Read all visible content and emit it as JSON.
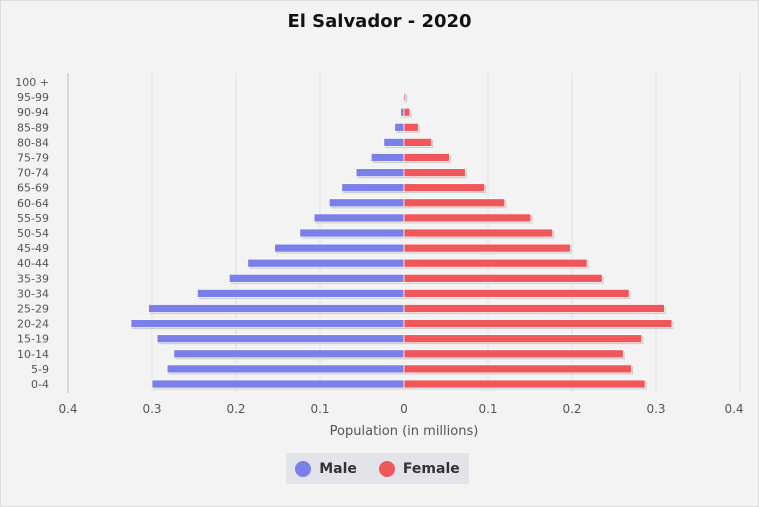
{
  "chart_data": {
    "type": "bar",
    "orientation": "horizontal-pyramid",
    "title": "El Salvador - 2020",
    "xlabel": "Population (in millions)",
    "ylabel": "",
    "xlim": [
      -0.4,
      0.4
    ],
    "x_ticks": [
      "0.4",
      "0.3",
      "0.2",
      "0.1",
      "0",
      "0.1",
      "0.2",
      "0.3",
      "0.4"
    ],
    "grid": true,
    "legend_position": "bottom-center",
    "categories": [
      "100 +",
      "95-99",
      "90-94",
      "85-89",
      "80-84",
      "75-79",
      "70-74",
      "65-69",
      "60-64",
      "55-59",
      "50-54",
      "45-49",
      "40-44",
      "35-39",
      "30-34",
      "25-29",
      "20-24",
      "15-19",
      "10-14",
      "5-9",
      "0-4"
    ],
    "series": [
      {
        "name": "Male",
        "color": "#7b7fe8",
        "values": [
          0,
          0.001,
          0.004,
          0.011,
          0.024,
          0.039,
          0.057,
          0.074,
          0.089,
          0.107,
          0.124,
          0.154,
          0.186,
          0.208,
          0.246,
          0.304,
          0.325,
          0.294,
          0.274,
          0.282,
          0.3
        ]
      },
      {
        "name": "Female",
        "color": "#f0575a",
        "values": [
          0,
          0.002,
          0.007,
          0.017,
          0.033,
          0.054,
          0.073,
          0.096,
          0.12,
          0.151,
          0.177,
          0.198,
          0.218,
          0.236,
          0.268,
          0.31,
          0.319,
          0.283,
          0.261,
          0.271,
          0.287
        ]
      }
    ]
  }
}
